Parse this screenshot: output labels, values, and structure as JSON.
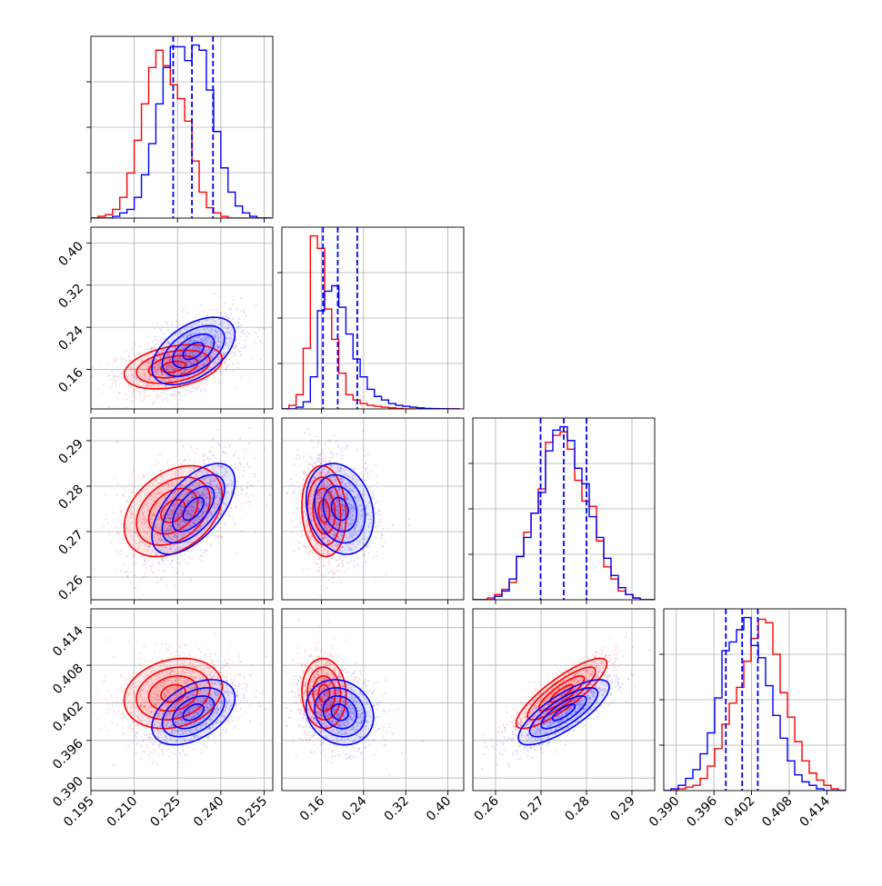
{
  "colors": {
    "set_a": "#0000ff",
    "set_b": "#ff0000",
    "grid": "#b0b0b0"
  },
  "chart_data": {
    "type": "corner",
    "n_params": 4,
    "grid": true,
    "ranges": [
      [
        0.195,
        0.258
      ],
      [
        0.085,
        0.43
      ],
      [
        0.255,
        0.295
      ],
      [
        0.388,
        0.417
      ]
    ],
    "ticks": [
      [
        "0.195",
        "0.210",
        "0.225",
        "0.240",
        "0.255"
      ],
      [
        "0.16",
        "0.24",
        "0.32",
        "0.40"
      ],
      [
        "0.26",
        "0.27",
        "0.28",
        "0.29"
      ],
      [
        "0.390",
        "0.396",
        "0.402",
        "0.408",
        "0.414"
      ]
    ],
    "tick_values": [
      [
        0.195,
        0.21,
        0.225,
        0.24,
        0.255
      ],
      [
        0.16,
        0.24,
        0.32,
        0.4
      ],
      [
        0.26,
        0.27,
        0.28,
        0.29
      ],
      [
        0.39,
        0.396,
        0.402,
        0.408,
        0.414
      ]
    ],
    "quantiles_blue": [
      [
        0.2235,
        0.23,
        0.2373
      ],
      [
        0.163,
        0.191,
        0.228
      ],
      [
        0.2699,
        0.275,
        0.28
      ],
      [
        0.3979,
        0.4005,
        0.403
      ]
    ],
    "series": [
      {
        "color": "blue",
        "means": [
          0.2305,
          0.195,
          0.275,
          0.4005
        ],
        "sds": [
          0.0072,
          0.032,
          0.005,
          0.0026
        ],
        "corr": {
          "1-0": 0.5,
          "2-0": 0.6,
          "2-1": -0.2,
          "3-0": 0.45,
          "3-1": -0.15,
          "3-2": 0.78
        }
      },
      {
        "color": "red",
        "means": [
          0.2235,
          0.165,
          0.2745,
          0.4035
        ],
        "sds": [
          0.0085,
          0.021,
          0.005,
          0.0028
        ],
        "corr": {
          "1-0": 0.35,
          "2-0": 0.35,
          "2-1": -0.1,
          "3-0": 0.2,
          "3-1": -0.05,
          "3-2": 0.85
        }
      }
    ],
    "histograms": [
      {
        "edges": [
          0.195,
          0.1975,
          0.2,
          0.2025,
          0.205,
          0.2075,
          0.21,
          0.2125,
          0.215,
          0.2175,
          0.22,
          0.2225,
          0.225,
          0.2275,
          0.23,
          0.2325,
          0.235,
          0.2375,
          0.24,
          0.2425,
          0.245,
          0.2475,
          0.25,
          0.2525,
          0.255,
          0.2575
        ],
        "blue": [
          0,
          0,
          0,
          1,
          3,
          5,
          12,
          25,
          43,
          66,
          87,
          99,
          99,
          91,
          100,
          97,
          74,
          50,
          29,
          15,
          7,
          3,
          1,
          0,
          0
        ],
        "red": [
          0,
          1,
          2,
          5,
          12,
          26,
          45,
          66,
          87,
          97,
          88,
          77,
          69,
          56,
          33,
          15,
          6,
          3,
          1,
          0,
          0,
          0,
          0,
          0,
          0
        ]
      },
      {
        "edges": [
          0.085,
          0.0985,
          0.112,
          0.1255,
          0.139,
          0.1525,
          0.166,
          0.1795,
          0.193,
          0.2065,
          0.22,
          0.2335,
          0.247,
          0.2605,
          0.274,
          0.2875,
          0.301,
          0.3145,
          0.328,
          0.3415,
          0.355,
          0.3685,
          0.382,
          0.3955,
          0.409,
          0.4225
        ],
        "blue": [
          0,
          0,
          1,
          4,
          18,
          55,
          66,
          69,
          57,
          42,
          28,
          18,
          11,
          7,
          5,
          3,
          2,
          1.5,
          1,
          0.6,
          0.3,
          0.2,
          0.1,
          0,
          0
        ],
        "red": [
          0,
          2,
          8,
          34,
          97,
          90,
          56,
          39,
          20,
          8,
          5,
          3,
          2,
          1.5,
          1,
          0.6,
          0.3,
          0,
          0,
          0,
          0,
          0,
          0,
          0,
          0
        ]
      },
      {
        "edges": [
          0.255,
          0.2566,
          0.2582,
          0.2598,
          0.2614,
          0.263,
          0.2646,
          0.2662,
          0.2678,
          0.2694,
          0.271,
          0.2726,
          0.2742,
          0.2758,
          0.2774,
          0.279,
          0.2806,
          0.2822,
          0.2838,
          0.2854,
          0.287,
          0.2886,
          0.2902,
          0.2918,
          0.2934,
          0.295
        ],
        "blue": [
          0,
          0,
          0,
          2,
          5,
          12,
          25,
          36,
          50,
          62,
          86,
          98,
          100,
          92,
          76,
          67,
          48,
          36,
          24,
          14,
          7,
          3,
          1,
          0,
          0
        ],
        "red": [
          0,
          0,
          1,
          3,
          6,
          10,
          25,
          39,
          50,
          64,
          91,
          95,
          97,
          87,
          69,
          57,
          54,
          34,
          19,
          12,
          5,
          3,
          1,
          0,
          0
        ]
      },
      {
        "edges": [
          0.388,
          0.38916,
          0.39032,
          0.39148,
          0.39264,
          0.3938,
          0.39496,
          0.39612,
          0.39728,
          0.39844,
          0.3996,
          0.40076,
          0.40192,
          0.40308,
          0.40424,
          0.4054,
          0.40656,
          0.40772,
          0.40888,
          0.41004,
          0.4112,
          0.41236,
          0.41352,
          0.41468,
          0.41584,
          0.417
        ],
        "blue": [
          0,
          1,
          3,
          7,
          12,
          21,
          33,
          53,
          80,
          85,
          92,
          99,
          83,
          76,
          60,
          43,
          30,
          17,
          9,
          5,
          3,
          1,
          0,
          0,
          0
        ],
        "red": [
          0,
          0,
          1,
          2,
          3,
          7,
          14,
          24,
          38,
          50,
          59,
          74,
          87,
          98,
          96,
          78,
          56,
          42,
          28,
          17,
          10,
          6,
          3,
          1,
          0
        ]
      }
    ]
  }
}
